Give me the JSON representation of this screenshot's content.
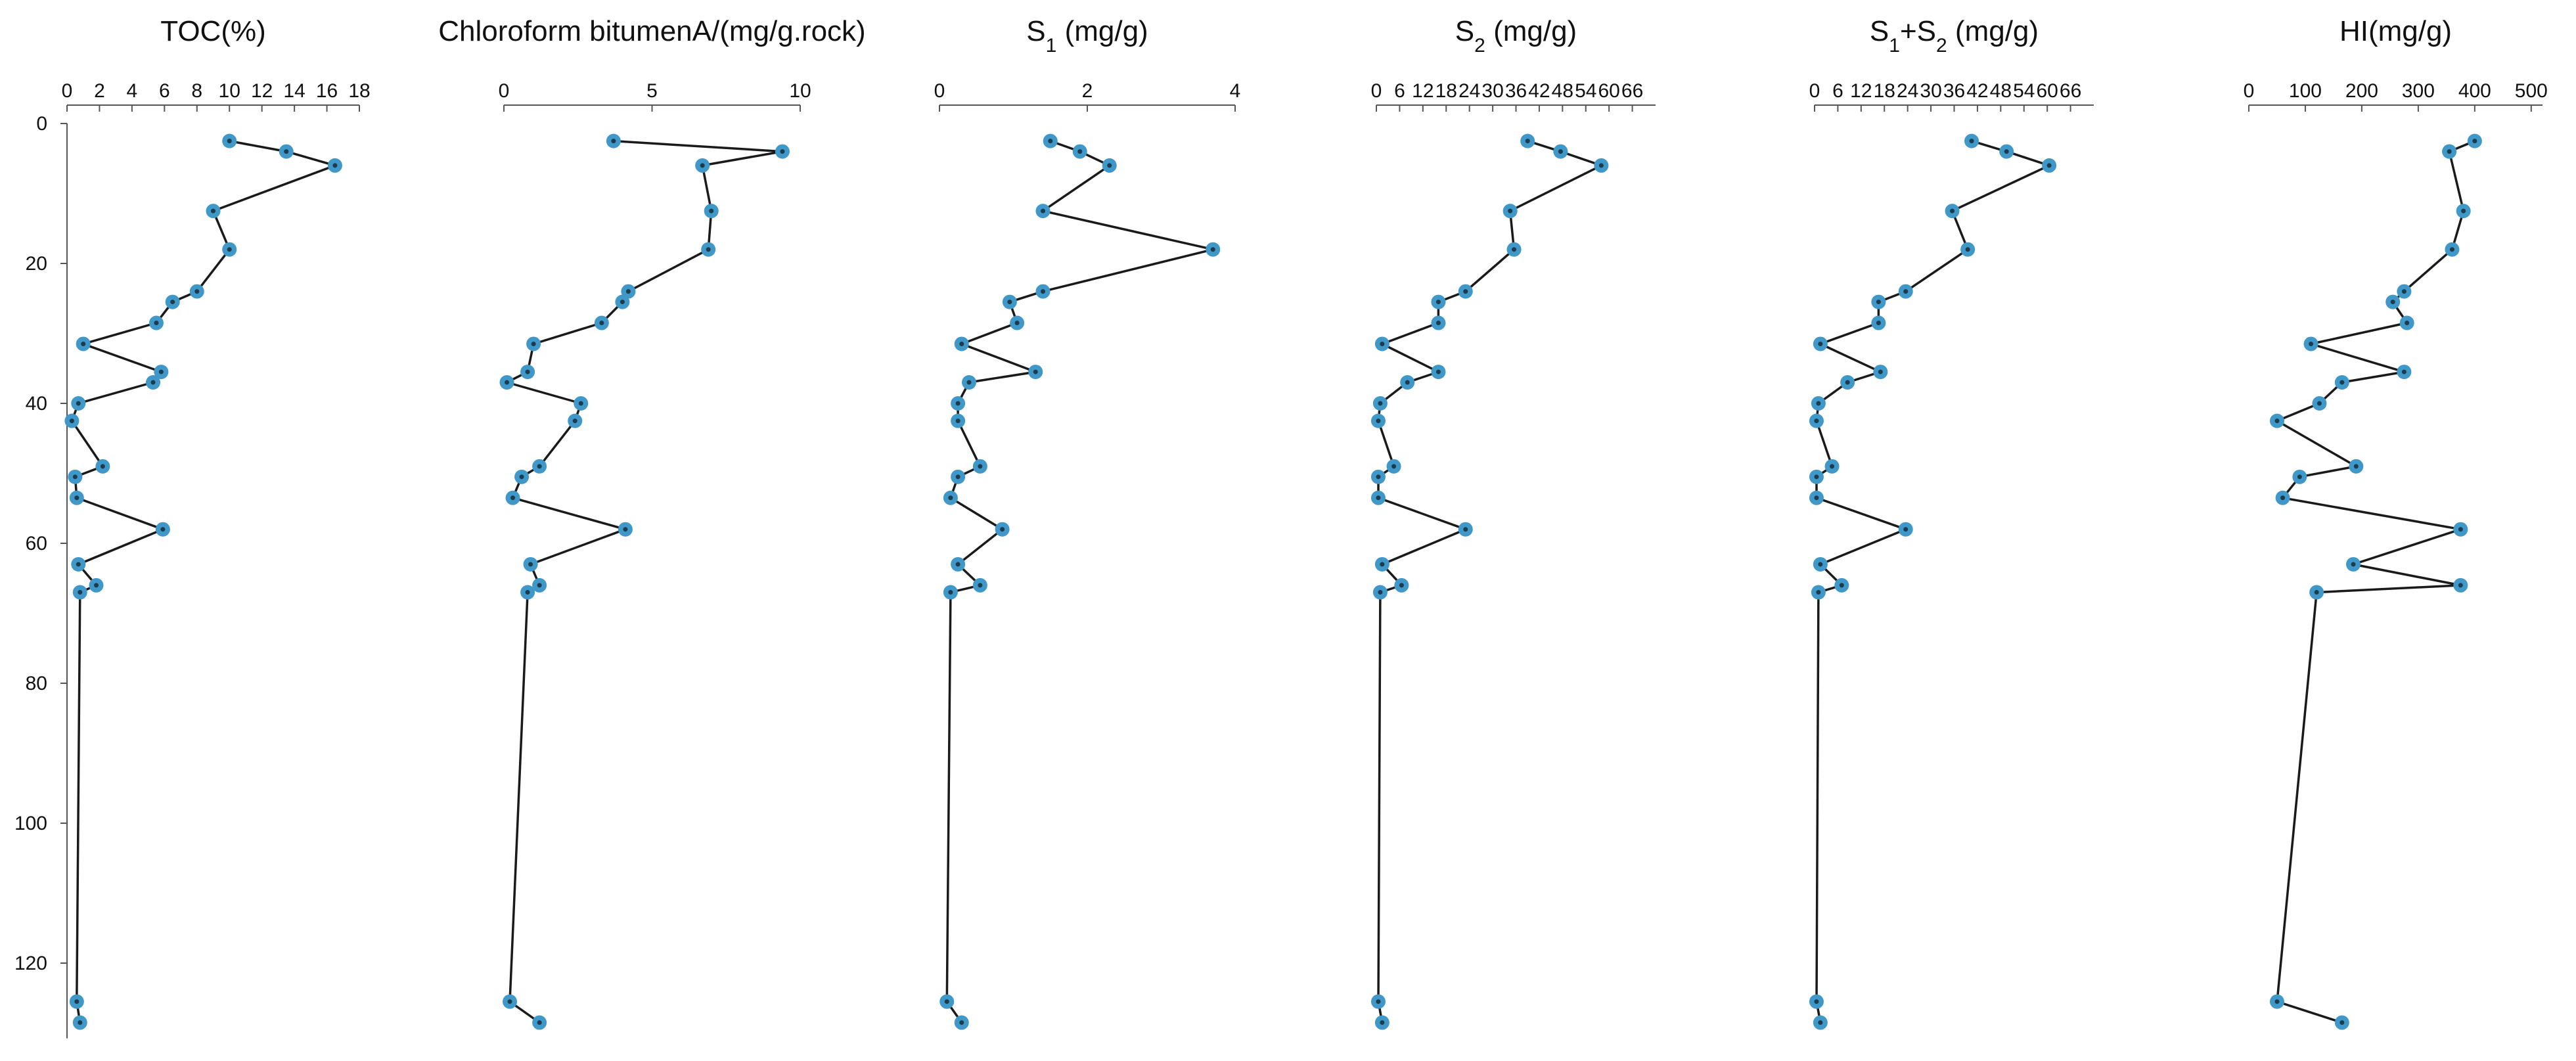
{
  "colors": {
    "marker": "#3f98c8",
    "marker_center": "#1c3b4c",
    "line": "#1a1a1a",
    "axis": "#555555"
  },
  "depth_axis": {
    "ticks": [
      0,
      20,
      40,
      60,
      80,
      100,
      120
    ],
    "range": [
      0,
      130
    ]
  },
  "chart_data": [
    {
      "type": "line",
      "title_parts": [
        "TOC(%)"
      ],
      "xlim": [
        0,
        18
      ],
      "x_ticks": [
        "0",
        "2",
        "4",
        "6",
        "8",
        "10",
        "12",
        "14",
        "16",
        "18"
      ],
      "x_tick_values": [
        0,
        2,
        4,
        6,
        8,
        10,
        12,
        14,
        16,
        18
      ],
      "series": [
        {
          "x": [
            10,
            13.5,
            16.5,
            9,
            10,
            8,
            6.5,
            5.5,
            1,
            5.8,
            5.3,
            0.7,
            0.3,
            2.2,
            0.5,
            0.6,
            5.9,
            0.7,
            1.8,
            0.8,
            0.6,
            0.8
          ],
          "y": [
            2.5,
            4,
            6,
            12.5,
            18,
            24,
            25.5,
            28.5,
            31.5,
            35.5,
            37,
            40,
            42.5,
            49,
            50.5,
            53.5,
            58,
            63,
            66,
            67,
            125.5,
            128.5
          ]
        }
      ]
    },
    {
      "type": "line",
      "title_parts": [
        "Chloroform bitumenA/(mg/g.rock)"
      ],
      "xlim": [
        0,
        10
      ],
      "x_ticks": [
        "0",
        "5",
        "10"
      ],
      "x_tick_values": [
        0,
        5,
        10
      ],
      "series": [
        {
          "x": [
            3.7,
            9.4,
            6.7,
            7,
            6.9,
            4.2,
            4,
            3.3,
            1,
            0.8,
            0.1,
            2.6,
            2.4,
            1.2,
            0.6,
            0.3,
            4.1,
            0.9,
            1.2,
            0.8,
            0.2,
            1.2
          ],
          "y": [
            2.5,
            4,
            6,
            12.5,
            18,
            24,
            25.5,
            28.5,
            31.5,
            35.5,
            37,
            40,
            42.5,
            49,
            50.5,
            53.5,
            58,
            63,
            66,
            67,
            125.5,
            128.5
          ]
        }
      ]
    },
    {
      "type": "line",
      "title_parts": [
        "S",
        "1",
        " (mg/g)"
      ],
      "xlim": [
        0,
        4
      ],
      "x_ticks": [
        "0",
        "2",
        "4"
      ],
      "x_tick_values": [
        0,
        2,
        4
      ],
      "series": [
        {
          "x": [
            1.5,
            1.9,
            2.3,
            1.4,
            3.7,
            1.4,
            0.95,
            1.05,
            0.3,
            1.3,
            0.4,
            0.25,
            0.25,
            0.55,
            0.25,
            0.15,
            0.85,
            0.25,
            0.55,
            0.15,
            0.1,
            0.3
          ],
          "y": [
            2.5,
            4,
            6,
            12.5,
            18,
            24,
            25.5,
            28.5,
            31.5,
            35.5,
            37,
            40,
            42.5,
            49,
            50.5,
            53.5,
            58,
            63,
            66,
            67,
            125.5,
            128.5
          ]
        }
      ]
    },
    {
      "type": "line",
      "title_parts": [
        "S",
        "2",
        " (mg/g)"
      ],
      "xlim": [
        0,
        72
      ],
      "x_ticks": [
        "0",
        "6",
        "12",
        "18",
        "24",
        "30",
        "36",
        "42",
        "48",
        "54",
        "60",
        "66"
      ],
      "x_tick_values": [
        0,
        6,
        12,
        18,
        24,
        30,
        36,
        42,
        48,
        54,
        60,
        66
      ],
      "series": [
        {
          "x": [
            39,
            47.5,
            58,
            34.5,
            35.5,
            23,
            16,
            16,
            1.5,
            16,
            8,
            1,
            0.5,
            4.5,
            0.5,
            0.5,
            23,
            1.5,
            6.5,
            1,
            0.5,
            1.5
          ],
          "y": [
            2.5,
            4,
            6,
            12.5,
            18,
            24,
            25.5,
            28.5,
            31.5,
            35.5,
            37,
            40,
            42.5,
            49,
            50.5,
            53.5,
            58,
            63,
            66,
            67,
            125.5,
            128.5
          ]
        }
      ]
    },
    {
      "type": "line",
      "title_parts": [
        "S",
        "1",
        "+S",
        "2",
        " (mg/g)"
      ],
      "xlim": [
        0,
        72
      ],
      "x_ticks": [
        "0",
        "6",
        "12",
        "18",
        "24",
        "30",
        "36",
        "42",
        "48",
        "54",
        "60",
        "66"
      ],
      "x_tick_values": [
        0,
        6,
        12,
        18,
        24,
        30,
        36,
        42,
        48,
        54,
        60,
        66
      ],
      "series": [
        {
          "x": [
            40.5,
            49.5,
            60.5,
            35.5,
            39.5,
            23.5,
            16.5,
            16.5,
            1.5,
            17,
            8.5,
            1,
            0.5,
            4.5,
            0.5,
            0.5,
            23.5,
            1.5,
            7,
            1,
            0.5,
            1.5
          ],
          "y": [
            2.5,
            4,
            6,
            12.5,
            18,
            24,
            25.5,
            28.5,
            31.5,
            35.5,
            37,
            40,
            42.5,
            49,
            50.5,
            53.5,
            58,
            63,
            66,
            67,
            125.5,
            128.5
          ]
        }
      ]
    },
    {
      "type": "line",
      "title_parts": [
        "HI(mg/g)"
      ],
      "xlim": [
        0,
        520
      ],
      "x_ticks": [
        "0",
        "100",
        "200",
        "300",
        "400",
        "500"
      ],
      "x_tick_values": [
        0,
        100,
        200,
        300,
        400,
        500
      ],
      "series": [
        {
          "x": [
            400,
            355,
            355,
            380,
            360,
            275,
            255,
            280,
            110,
            275,
            165,
            125,
            50,
            190,
            90,
            60,
            375,
            185,
            375,
            120,
            50,
            165
          ],
          "y": [
            2.5,
            4,
            4,
            12.5,
            18,
            24,
            25.5,
            28.5,
            31.5,
            35.5,
            37,
            40,
            42.5,
            49,
            50.5,
            53.5,
            58,
            63,
            66,
            67,
            125.5,
            128.5
          ]
        }
      ]
    }
  ]
}
